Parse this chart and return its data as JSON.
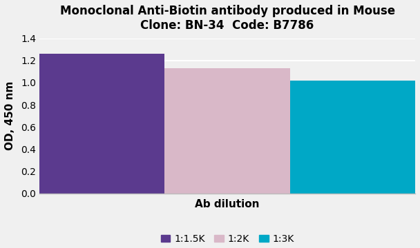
{
  "title_line1": "Monoclonal Anti-Biotin antibody produced in Mouse",
  "title_line2": "Clone: BN-34  Code: B7786",
  "categories": [
    "1:1.5K",
    "1:2K",
    "1:3K"
  ],
  "values": [
    1.26,
    1.13,
    1.02
  ],
  "bar_colors": [
    "#5B3A8E",
    "#D9B8C8",
    "#00A8C6"
  ],
  "ylabel": "OD, 450 nm",
  "xlabel": "Ab dilution",
  "ylim": [
    0,
    1.4
  ],
  "yticks": [
    0,
    0.2,
    0.4,
    0.6,
    0.8,
    1.0,
    1.2,
    1.4
  ],
  "background_color": "#f0f0f0",
  "plot_bg_color": "#f0f0f0",
  "grid_color": "#ffffff",
  "title_fontsize": 12,
  "axis_label_fontsize": 11,
  "tick_fontsize": 10,
  "legend_fontsize": 10
}
